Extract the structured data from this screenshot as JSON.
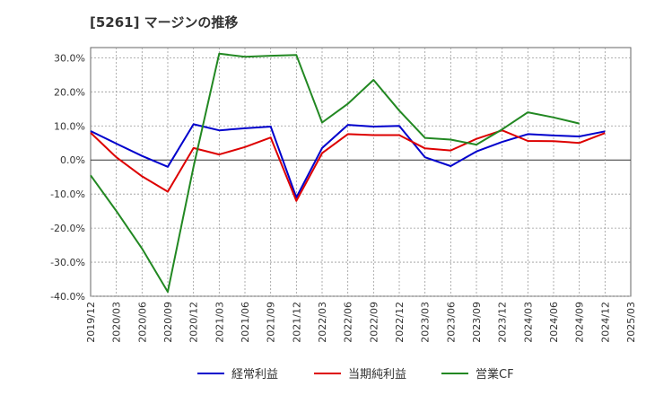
{
  "title": "[5261]  マージンの推移",
  "colors": {
    "keijo": "#0000cc",
    "junri": "#dd0000",
    "cf": "#228822",
    "grid": "#999999",
    "zero": "#333333"
  },
  "chart_data": {
    "type": "line",
    "title": "[5261]  マージンの推移",
    "xlabel": "",
    "ylabel": "",
    "ylim": [
      -40,
      33
    ],
    "y_ticks": [
      30,
      20,
      10,
      0,
      -10,
      -20,
      -30,
      -40
    ],
    "y_tick_labels": [
      "30.0%",
      "20.0%",
      "10.0%",
      "0.0%",
      "-10.0%",
      "-20.0%",
      "-30.0%",
      "-40.0%"
    ],
    "x_tick_labels": [
      "2019/12",
      "2020/03",
      "2020/06",
      "2020/09",
      "2020/12",
      "2021/03",
      "2021/06",
      "2021/09",
      "2021/12",
      "2022/03",
      "2022/06",
      "2022/09",
      "2022/12",
      "2023/03",
      "2023/06",
      "2023/09",
      "2023/12",
      "2024/03",
      "2024/06",
      "2024/09",
      "2024/12",
      "2025/03"
    ],
    "grid": true,
    "legend_position": "bottom",
    "series": [
      {
        "name": "経常利益",
        "color": "#0000cc",
        "x": [
          "2019/12",
          "2020/03",
          "2020/06",
          "2020/09",
          "2020/12",
          "2021/03",
          "2021/06",
          "2021/09",
          "2021/12",
          "2022/03",
          "2022/06",
          "2022/09",
          "2022/12",
          "2023/03",
          "2023/06",
          "2023/09",
          "2023/12",
          "2024/03",
          "2024/06",
          "2024/09",
          "2024/12"
        ],
        "values": [
          8.5,
          4.8,
          1.2,
          -2.0,
          10.5,
          8.7,
          9.3,
          9.8,
          -11.0,
          3.5,
          10.3,
          9.8,
          10.0,
          0.8,
          -1.8,
          2.5,
          5.3,
          7.6,
          7.2,
          6.9,
          8.4
        ]
      },
      {
        "name": "当期純利益",
        "color": "#dd0000",
        "x": [
          "2019/12",
          "2020/03",
          "2020/06",
          "2020/09",
          "2020/12",
          "2021/03",
          "2021/06",
          "2021/09",
          "2021/12",
          "2022/03",
          "2022/06",
          "2022/09",
          "2022/12",
          "2023/03",
          "2023/06",
          "2023/09",
          "2023/12",
          "2024/03",
          "2024/06",
          "2024/09",
          "2024/12"
        ],
        "values": [
          8.0,
          0.8,
          -4.8,
          -9.3,
          3.5,
          1.6,
          3.8,
          6.6,
          -12.0,
          2.0,
          7.6,
          7.3,
          7.3,
          3.4,
          2.8,
          6.2,
          8.7,
          5.6,
          5.5,
          5.0,
          7.9
        ]
      },
      {
        "name": "営業CF",
        "color": "#228822",
        "x": [
          "2019/12",
          "2020/03",
          "2020/06",
          "2020/09",
          "2020/12",
          "2021/03",
          "2021/06",
          "2021/09",
          "2021/12",
          "2022/03",
          "2022/06",
          "2022/09",
          "2022/12",
          "2023/03",
          "2023/06",
          "2023/09",
          "2023/12",
          "2024/03",
          "2024/06",
          "2024/09"
        ],
        "values": [
          -4.5,
          -15.0,
          -26.0,
          -38.7,
          -2.0,
          31.2,
          30.3,
          30.6,
          30.8,
          11.0,
          16.5,
          23.5,
          14.5,
          6.5,
          6.0,
          4.5,
          9.0,
          14.0,
          12.5,
          10.7
        ]
      }
    ]
  }
}
